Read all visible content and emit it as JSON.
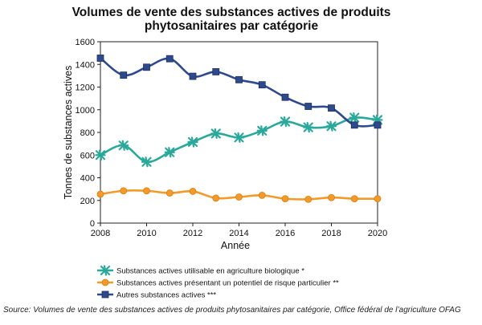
{
  "chart_data": {
    "type": "line",
    "title_line1": "Volumes de vente des substances actives de produits",
    "title_line2": "phytosanitaires par catégorie",
    "xlabel": "Année",
    "ylabel": "Tonnes de substances actives",
    "xlim": [
      2008,
      2020
    ],
    "ylim": [
      0,
      1600
    ],
    "x_ticks": [
      "2008",
      "2010",
      "2012",
      "2014",
      "2016",
      "2018",
      "2020"
    ],
    "y_ticks": [
      "0",
      "200",
      "400",
      "600",
      "800",
      "1000",
      "1200",
      "1400",
      "1600"
    ],
    "grid": false,
    "legend_position": "bottom",
    "x": [
      2008,
      2009,
      2010,
      2011,
      2012,
      2013,
      2014,
      2015,
      2016,
      2017,
      2018,
      2019,
      2020
    ],
    "series": [
      {
        "name": "Substances actives utilisable en agriculture biologique *",
        "color": "#2aa99b",
        "marker": "star",
        "values": [
          600,
          685,
          540,
          625,
          715,
          790,
          755,
          815,
          895,
          845,
          855,
          930,
          910
        ]
      },
      {
        "name": "Substances actives présentant un potentiel de risque particulier **",
        "color": "#f39a2a",
        "marker": "circle",
        "values": [
          255,
          285,
          285,
          265,
          280,
          220,
          230,
          245,
          215,
          210,
          225,
          215,
          215
        ]
      },
      {
        "name": "Autres substances actives ***",
        "color": "#2f4a8c",
        "marker": "square",
        "values": [
          1455,
          1305,
          1375,
          1450,
          1295,
          1335,
          1265,
          1220,
          1110,
          1030,
          1015,
          865,
          865
        ]
      }
    ]
  },
  "source": "Source: Volumes de vente des substances actives de produits phytosanitaires par catégorie, Office fédéral de l’agriculture OFAG"
}
